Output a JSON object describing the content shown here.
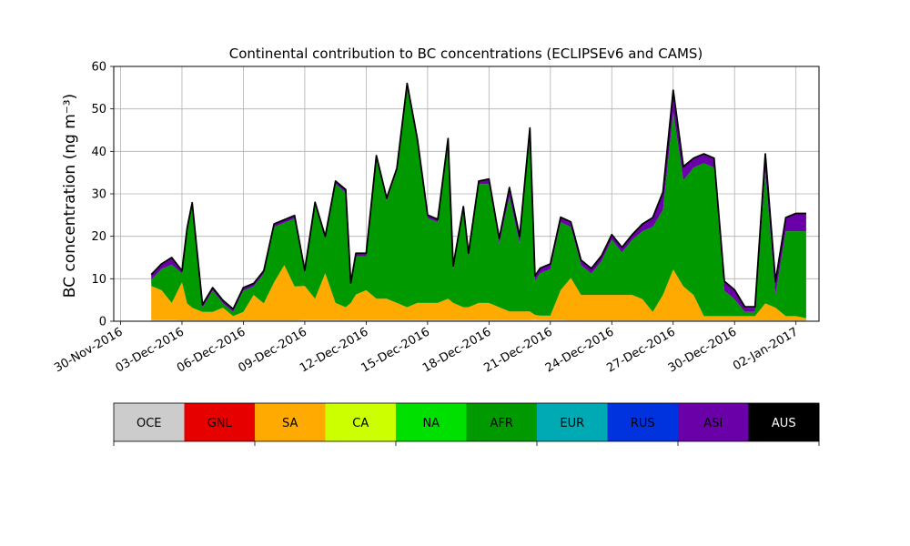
{
  "chart_data": {
    "type": "area",
    "stacked": true,
    "title": "Continental contribution to BC concentrations (ECLIPSEv6 and CAMS)",
    "ylabel": "BC concentration (ng m⁻³)",
    "ylim": [
      0,
      60
    ],
    "yticks": [
      0,
      10,
      20,
      30,
      40,
      50,
      60
    ],
    "xlim": [
      "2016-11-29T16:00",
      "2017-01-03T03:00"
    ],
    "xticks": [
      "2016-11-30",
      "2016-12-03",
      "2016-12-06",
      "2016-12-09",
      "2016-12-12",
      "2016-12-15",
      "2016-12-18",
      "2016-12-21",
      "2016-12-24",
      "2016-12-27",
      "2016-12-30",
      "2017-01-02"
    ],
    "xtick_labels": [
      "30-Nov-2016",
      "03-Dec-2016",
      "06-Dec-2016",
      "09-Dec-2016",
      "12-Dec-2016",
      "15-Dec-2016",
      "18-Dec-2016",
      "21-Dec-2016",
      "24-Dec-2016",
      "27-Dec-2016",
      "30-Dec-2016",
      "02-Jan-2017"
    ],
    "grid": true,
    "legend_position": "bottom (colorbar)",
    "x": [
      "2016-12-01T12:00",
      "2016-12-02T00:00",
      "2016-12-02T12:00",
      "2016-12-03T00:00",
      "2016-12-03T06:00",
      "2016-12-03T12:00",
      "2016-12-04T00:00",
      "2016-12-04T12:00",
      "2016-12-05T00:00",
      "2016-12-05T12:00",
      "2016-12-06T00:00",
      "2016-12-06T12:00",
      "2016-12-07T00:00",
      "2016-12-07T12:00",
      "2016-12-08T00:00",
      "2016-12-08T12:00",
      "2016-12-09T00:00",
      "2016-12-09T12:00",
      "2016-12-10T00:00",
      "2016-12-10T12:00",
      "2016-12-11T00:00",
      "2016-12-11T06:00",
      "2016-12-11T12:00",
      "2016-12-12T00:00",
      "2016-12-12T12:00",
      "2016-12-13T00:00",
      "2016-12-13T12:00",
      "2016-12-14T00:00",
      "2016-12-14T12:00",
      "2016-12-15T00:00",
      "2016-12-15T12:00",
      "2016-12-16T00:00",
      "2016-12-16T06:00",
      "2016-12-16T18:00",
      "2016-12-17T00:00",
      "2016-12-17T12:00",
      "2016-12-18T00:00",
      "2016-12-18T12:00",
      "2016-12-19T00:00",
      "2016-12-19T12:00",
      "2016-12-20T00:00",
      "2016-12-20T06:00",
      "2016-12-20T12:00",
      "2016-12-21T00:00",
      "2016-12-21T12:00",
      "2016-12-22T00:00",
      "2016-12-22T12:00",
      "2016-12-23T00:00",
      "2016-12-23T12:00",
      "2016-12-24T00:00",
      "2016-12-24T12:00",
      "2016-12-25T00:00",
      "2016-12-25T12:00",
      "2016-12-26T00:00",
      "2016-12-26T12:00",
      "2016-12-27T00:00",
      "2016-12-27T12:00",
      "2016-12-28T00:00",
      "2016-12-28T12:00",
      "2016-12-29T00:00",
      "2016-12-29T12:00",
      "2016-12-30T00:00",
      "2016-12-30T12:00",
      "2016-12-31T00:00",
      "2016-12-31T12:00",
      "2017-01-01T00:00",
      "2017-01-01T12:00",
      "2017-01-02T00:00",
      "2017-01-02T12:00"
    ],
    "series": [
      {
        "name": "OCE",
        "color": "#cccccc",
        "values": [
          0.3,
          0.3,
          0.3,
          0.2,
          0.2,
          0.2,
          0.2,
          0.2,
          0.2,
          0.2,
          0.2,
          0.2,
          0.2,
          0.2,
          0.2,
          0.2,
          0.3,
          0.3,
          0.3,
          0.3,
          0.3,
          0.3,
          0.3,
          0.3,
          0.3,
          0.3,
          0.3,
          0.3,
          0.3,
          0.3,
          0.3,
          0.3,
          0.3,
          0.3,
          0.3,
          0.3,
          0.3,
          0.3,
          0.3,
          0.3,
          0.3,
          0.5,
          0.3,
          0.3,
          0.3,
          0.2,
          0.2,
          0.2,
          0.2,
          0.2,
          0.2,
          0.2,
          0.2,
          0.2,
          0.2,
          0.2,
          0.2,
          0.2,
          0.2,
          0.2,
          0.2,
          0.2,
          0.2,
          0.2,
          0.2,
          0.2,
          0.2,
          0.2,
          0.2
        ]
      },
      {
        "name": "GNL",
        "color": "#e60000",
        "values": [
          0,
          0,
          0,
          0,
          0,
          0,
          0,
          0,
          0,
          0,
          0,
          0,
          0,
          0,
          0,
          0,
          0,
          0,
          0,
          0,
          0,
          0,
          0,
          0,
          0,
          0,
          0,
          0,
          0,
          0,
          0,
          0,
          0,
          0,
          0,
          0,
          0,
          0,
          0,
          0,
          0,
          0,
          0,
          0,
          0,
          0,
          0,
          0,
          0,
          0,
          0,
          0,
          0,
          0,
          0,
          0,
          0,
          0,
          0,
          0,
          0,
          0,
          0,
          0,
          0,
          0,
          0,
          0,
          0
        ]
      },
      {
        "name": "SA",
        "color": "#ffaa00",
        "values": [
          8,
          7,
          4,
          9,
          4,
          3,
          2,
          2,
          3,
          1,
          2,
          6,
          4,
          9,
          13,
          8,
          8,
          5,
          11,
          4,
          3,
          4,
          6,
          7,
          5,
          5,
          4,
          3,
          4,
          4,
          4,
          5,
          4,
          3,
          3,
          4,
          4,
          3,
          2,
          2,
          2,
          1,
          1,
          1,
          7,
          10,
          6,
          6,
          6,
          6,
          6,
          6,
          5,
          2,
          6,
          12,
          8,
          6,
          1,
          1,
          1,
          1,
          1,
          1,
          4,
          3,
          1,
          1,
          0.5
        ]
      },
      {
        "name": "CA",
        "color": "#ccff00",
        "values": [
          0,
          0,
          0,
          0,
          0,
          0,
          0,
          0,
          0,
          0,
          0,
          0,
          0,
          0,
          0,
          0,
          0,
          0,
          0,
          0,
          0,
          0,
          0,
          0,
          0,
          0,
          0,
          0,
          0,
          0,
          0,
          0,
          0,
          0,
          0,
          0,
          0,
          0,
          0,
          0,
          0,
          0,
          0,
          0,
          0,
          0,
          0,
          0,
          0,
          0,
          0,
          0,
          0,
          0,
          0,
          0,
          0,
          0,
          0,
          0,
          0,
          0,
          0,
          0,
          0,
          0,
          0,
          0,
          0
        ]
      },
      {
        "name": "NA",
        "color": "#00e000",
        "values": [
          0,
          0,
          0,
          0,
          0,
          0,
          0,
          0,
          0,
          0,
          0,
          0,
          0,
          0,
          0,
          0,
          0,
          0,
          0,
          0,
          0,
          0,
          0,
          0,
          0,
          0,
          0,
          0,
          0,
          0,
          0,
          0,
          0,
          0,
          0,
          0,
          0,
          0,
          0,
          0,
          0,
          0,
          0,
          0,
          0,
          0,
          0,
          0,
          0,
          0,
          0,
          0,
          0,
          0,
          0,
          0,
          0,
          0,
          0,
          0,
          0,
          0,
          0,
          0,
          0,
          0,
          0,
          0,
          0
        ]
      },
      {
        "name": "AFR",
        "color": "#009a00",
        "values": [
          1.5,
          5,
          9,
          2,
          17,
          24,
          1,
          5,
          1,
          1,
          5,
          2,
          7,
          13,
          10,
          16,
          3,
          22,
          8,
          28,
          27,
          4,
          9,
          8,
          33,
          23,
          31,
          52,
          38,
          20,
          19,
          37,
          8,
          23,
          12,
          28,
          28,
          15,
          27,
          16,
          42,
          8,
          10,
          11,
          16,
          12,
          7,
          5,
          8,
          13,
          10,
          13,
          16,
          20,
          20,
          37,
          25,
          30,
          36,
          35,
          6,
          4,
          1,
          1,
          31,
          3,
          20,
          20,
          20.5
        ]
      },
      {
        "name": "EUR",
        "color": "#00aab5",
        "values": [
          0,
          0,
          0,
          0,
          0,
          0,
          0,
          0,
          0,
          0,
          0,
          0,
          0,
          0,
          0,
          0,
          0,
          0,
          0,
          0,
          0,
          0,
          0,
          0,
          0,
          0,
          0,
          0,
          0,
          0,
          0,
          0,
          0,
          0,
          0,
          0,
          0,
          0,
          0,
          0,
          0,
          0,
          0,
          0,
          0,
          0,
          0,
          0,
          0,
          0,
          0,
          0,
          0,
          0,
          0,
          0,
          0,
          0,
          0,
          0,
          0,
          0,
          0,
          0,
          0,
          0,
          0,
          0,
          0
        ]
      },
      {
        "name": "RUS",
        "color": "#0033dd",
        "values": [
          0,
          0,
          0,
          0,
          0,
          0,
          0,
          0,
          0,
          0,
          0,
          0,
          0,
          0,
          0,
          0,
          0,
          0,
          0,
          0,
          0,
          0,
          0,
          0,
          0,
          0,
          0,
          0,
          0,
          0,
          0,
          0,
          0,
          0,
          0,
          0,
          0,
          0,
          0,
          0,
          0,
          0,
          0,
          0,
          0,
          0,
          0,
          0,
          0,
          0,
          0,
          0,
          0,
          0,
          0,
          0,
          0,
          0,
          0,
          0,
          0,
          0,
          0,
          0,
          0,
          0,
          0,
          0,
          0
        ]
      },
      {
        "name": "ASI",
        "color": "#6a00a8",
        "values": [
          1,
          1,
          1.5,
          0.5,
          0.5,
          0.5,
          0.5,
          0.5,
          0.5,
          0.5,
          0.5,
          0.5,
          0.5,
          0.5,
          0.5,
          0.5,
          0.5,
          0.5,
          0.5,
          0.5,
          0.5,
          0.5,
          0.5,
          0.5,
          0.5,
          0.5,
          0.5,
          0.5,
          0.5,
          0.5,
          0.5,
          0.5,
          0.5,
          0.5,
          0.5,
          0.5,
          1,
          1,
          2,
          1.5,
          1,
          1,
          1,
          1,
          1,
          1,
          1,
          1,
          1,
          1,
          1,
          1,
          1.5,
          2,
          4,
          5,
          3,
          2,
          2,
          2,
          2,
          2,
          1,
          1,
          4,
          3,
          3,
          4,
          4
        ]
      },
      {
        "name": "AUS",
        "color": "#000000",
        "values": [
          0.2,
          0.2,
          0.2,
          0.2,
          0.2,
          0.2,
          0.2,
          0.2,
          0.2,
          0.2,
          0.2,
          0.2,
          0.2,
          0.2,
          0.2,
          0.2,
          0.2,
          0.2,
          0.2,
          0.2,
          0.2,
          0.2,
          0.2,
          0.2,
          0.2,
          0.2,
          0.2,
          0.2,
          0.2,
          0.2,
          0.2,
          0.2,
          0.2,
          0.2,
          0.2,
          0.2,
          0.2,
          0.2,
          0.2,
          0.2,
          0.2,
          0.2,
          0.2,
          0.2,
          0.2,
          0.2,
          0.2,
          0.2,
          0.2,
          0.2,
          0.2,
          0.2,
          0.2,
          0.2,
          0.2,
          0.2,
          0.2,
          0.2,
          0.2,
          0.2,
          0.2,
          0.2,
          0.2,
          0.2,
          0.2,
          0.2,
          0.2,
          0.2,
          0.2
        ]
      }
    ],
    "legend_labels": [
      "OCE",
      "GNL",
      "SA",
      "CA",
      "NA",
      "AFR",
      "EUR",
      "RUS",
      "ASI",
      "AUS"
    ]
  }
}
